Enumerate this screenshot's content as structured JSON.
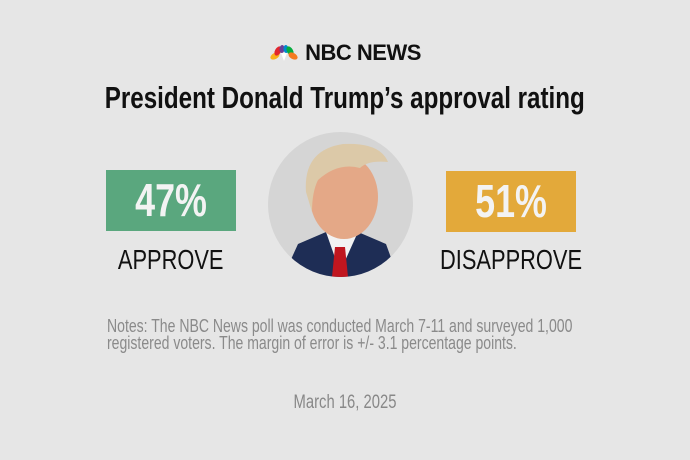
{
  "brand": {
    "logo_text": "NBC NEWS",
    "icon": "peacock-icon"
  },
  "title": "President Donald Trump’s approval rating",
  "approve": {
    "value": "47%",
    "label": "APPROVE",
    "color": "#5aa77e"
  },
  "disapprove": {
    "value": "51%",
    "label": "DISAPPROVE",
    "color": "#e3a93a"
  },
  "notes": {
    "line1": "Notes: The NBC News poll was conducted March 7-11 and surveyed 1,000",
    "line2": "registered voters. The margin of error is +/- 3.1 percentage points."
  },
  "date": "March 16, 2025"
}
